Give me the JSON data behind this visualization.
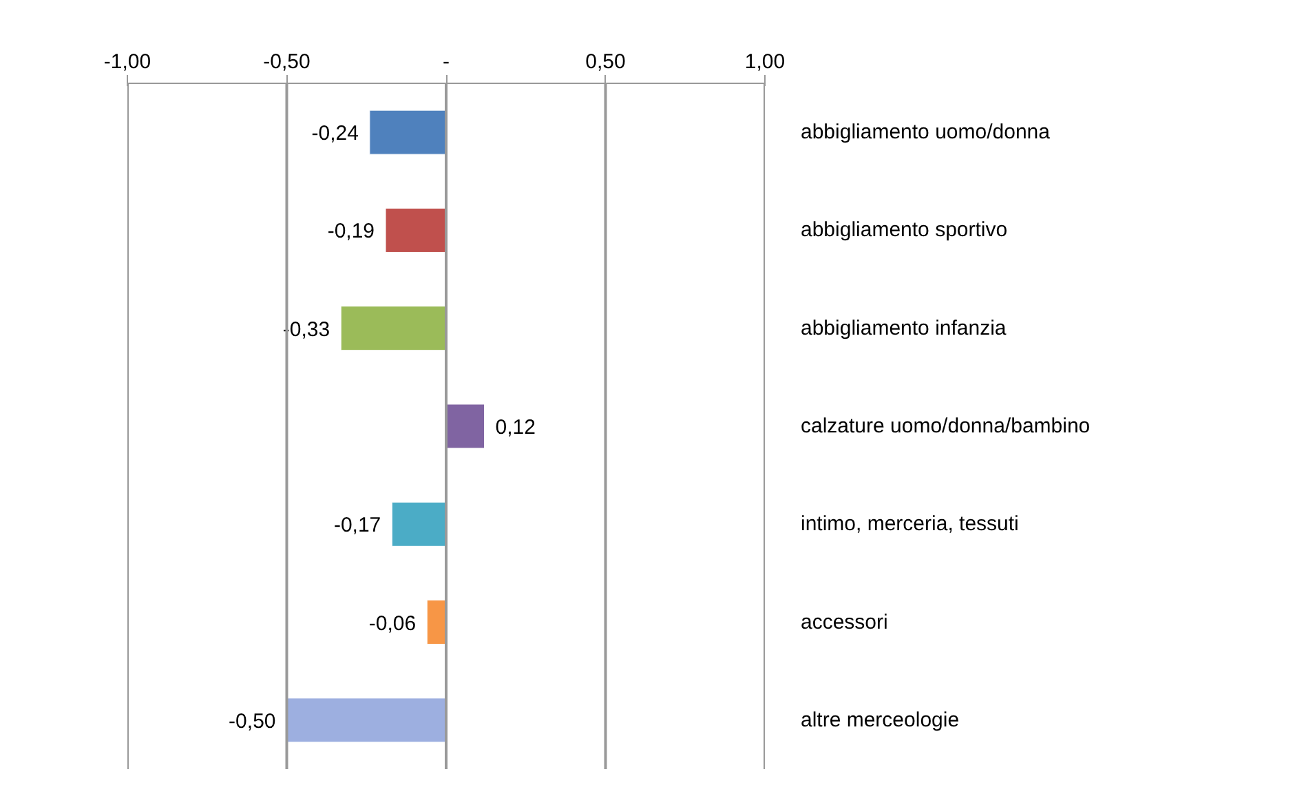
{
  "chart_data": {
    "type": "bar",
    "orientation": "horizontal",
    "categories": [
      "abbigliamento uomo/donna",
      "abbigliamento sportivo",
      "abbigliamento infanzia",
      "calzature uomo/donna/bambino",
      "intimo, merceria, tessuti",
      "accessori",
      "altre merceologie"
    ],
    "values": [
      -0.24,
      -0.19,
      -0.33,
      0.12,
      -0.17,
      -0.06,
      -0.5
    ],
    "colors": [
      "#4f81bd",
      "#c0504d",
      "#9bbb59",
      "#8064a2",
      "#4bacc6",
      "#f79646",
      "#9dafe0"
    ],
    "value_labels": [
      "-0,24",
      "-0,19",
      "-0,33",
      "0,12",
      "-0,17",
      "-0,06",
      "-0,50"
    ],
    "xlim": [
      -1,
      1
    ],
    "xticks": [
      {
        "value": -1,
        "label": "-1,00"
      },
      {
        "value": -0.5,
        "label": "-0,50"
      },
      {
        "value": 0,
        "label": "-"
      },
      {
        "value": 0.5,
        "label": "0,50"
      },
      {
        "value": 1,
        "label": "1,00"
      }
    ],
    "grid": "x"
  }
}
